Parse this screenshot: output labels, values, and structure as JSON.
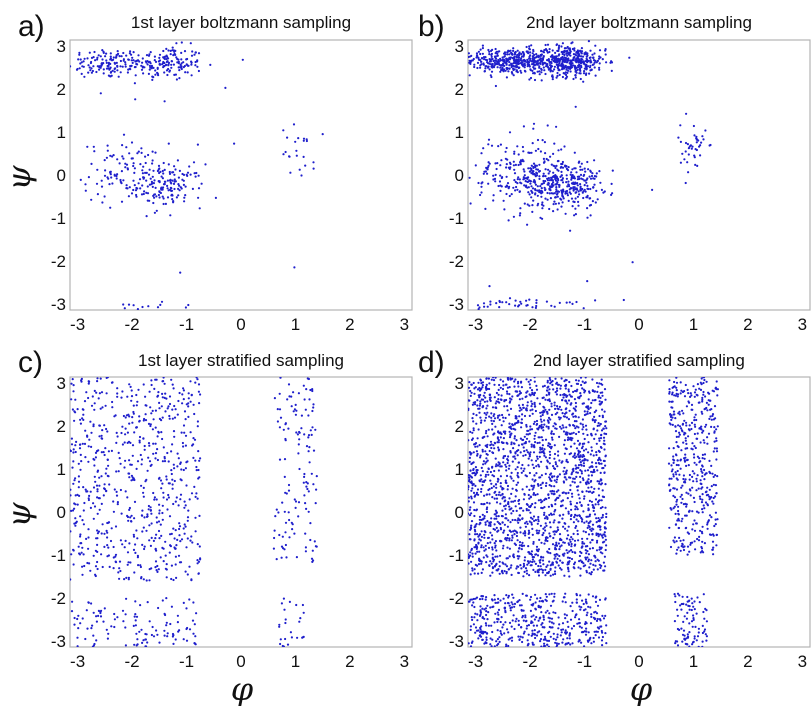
{
  "chart_data": [
    {
      "type": "scatter",
      "label": "a)",
      "title": "1st layer boltzmann sampling",
      "xlim": [
        -3.14,
        3.14
      ],
      "ylim": [
        -3.14,
        3.14
      ],
      "xticks": [
        "-3",
        "-2",
        "-1",
        "0",
        "1",
        "2",
        "3"
      ],
      "yticks": [
        "3",
        "2",
        "1",
        "0",
        "-1",
        "-2",
        "-3"
      ],
      "point_color": "#1f1fcc",
      "clusters": [
        {
          "cx": -2.5,
          "cy": 2.6,
          "sx": 0.35,
          "sy": 0.18,
          "n": 120
        },
        {
          "cx": -1.4,
          "cy": 2.6,
          "sx": 0.35,
          "sy": 0.2,
          "n": 170
        },
        {
          "cx": -2.1,
          "cy": 0.05,
          "sx": 0.4,
          "sy": 0.35,
          "n": 110
        },
        {
          "cx": -1.3,
          "cy": -0.25,
          "sx": 0.3,
          "sy": 0.25,
          "n": 130
        },
        {
          "cx": 1.05,
          "cy": 0.55,
          "sx": 0.15,
          "sy": 0.3,
          "n": 22
        },
        {
          "cx": -1.7,
          "cy": -3.05,
          "sx": 0.35,
          "sy": 0.05,
          "n": 12
        }
      ]
    },
    {
      "type": "scatter",
      "label": "b)",
      "title": "2nd layer boltzmann sampling",
      "xlim": [
        -3.14,
        3.14
      ],
      "ylim": [
        -3.14,
        3.14
      ],
      "xticks": [
        "-3",
        "-2",
        "-1",
        "0",
        "1",
        "2",
        "3"
      ],
      "yticks": [
        "3",
        "2",
        "1",
        "0",
        "-1",
        "-2",
        "-3"
      ],
      "point_color": "#1f1fcc",
      "clusters": [
        {
          "cx": -2.4,
          "cy": 2.65,
          "sx": 0.45,
          "sy": 0.15,
          "n": 380
        },
        {
          "cx": -1.3,
          "cy": 2.65,
          "sx": 0.35,
          "sy": 0.18,
          "n": 420
        },
        {
          "cx": -2.2,
          "cy": 0.0,
          "sx": 0.45,
          "sy": 0.45,
          "n": 200
        },
        {
          "cx": -1.4,
          "cy": -0.2,
          "sx": 0.35,
          "sy": 0.3,
          "n": 320
        },
        {
          "cx": 1.0,
          "cy": 0.6,
          "sx": 0.12,
          "sy": 0.3,
          "n": 40
        },
        {
          "cx": -2.0,
          "cy": -3.0,
          "sx": 0.6,
          "sy": 0.08,
          "n": 45
        }
      ]
    },
    {
      "type": "scatter",
      "label": "c)",
      "title": "1st layer stratified sampling",
      "xlim": [
        -3.14,
        3.14
      ],
      "ylim": [
        -3.14,
        3.14
      ],
      "xticks": [
        "-3",
        "-2",
        "-1",
        "0",
        "1",
        "2",
        "3"
      ],
      "yticks": [
        "3",
        "2",
        "1",
        "0",
        "-1",
        "-2",
        "-3"
      ],
      "point_color": "#1f1fcc",
      "uniform_regions": [
        {
          "x": [
            -3.14,
            -0.75
          ],
          "y": [
            -1.6,
            3.14
          ],
          "n": 700
        },
        {
          "x": [
            0.6,
            1.4
          ],
          "y": [
            -1.2,
            3.14
          ],
          "n": 130
        },
        {
          "x": [
            -3.14,
            -0.8
          ],
          "y": [
            -3.14,
            -2.0
          ],
          "n": 120
        },
        {
          "x": [
            0.7,
            1.2
          ],
          "y": [
            -3.14,
            -2.0
          ],
          "n": 25
        }
      ]
    },
    {
      "type": "scatter",
      "label": "d)",
      "title": "2nd layer stratified sampling",
      "xlim": [
        -3.14,
        3.14
      ],
      "ylim": [
        -3.14,
        3.14
      ],
      "xticks": [
        "-3",
        "-2",
        "-1",
        "0",
        "1",
        "2",
        "3"
      ],
      "yticks": [
        "3",
        "2",
        "1",
        "0",
        "-1",
        "-2",
        "-3"
      ],
      "point_color": "#1f1fcc",
      "uniform_regions": [
        {
          "x": [
            -3.14,
            -0.6
          ],
          "y": [
            -1.5,
            3.14
          ],
          "n": 2000
        },
        {
          "x": [
            0.55,
            1.45
          ],
          "y": [
            -1.0,
            3.14
          ],
          "n": 450
        },
        {
          "x": [
            -3.14,
            -0.6
          ],
          "y": [
            -3.14,
            -1.9
          ],
          "n": 450
        },
        {
          "x": [
            0.65,
            1.25
          ],
          "y": [
            -3.14,
            -1.9
          ],
          "n": 90
        }
      ]
    }
  ],
  "axis_labels": {
    "y": "ψ",
    "x": "φ"
  }
}
